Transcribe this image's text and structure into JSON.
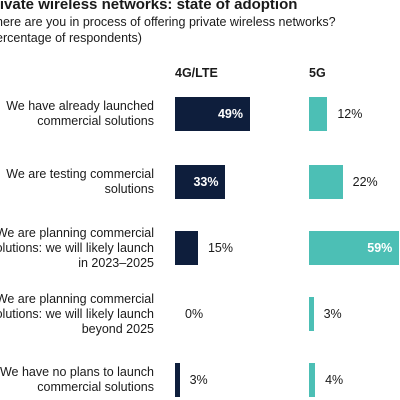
{
  "title": "rivate wireless networks: state of adoption",
  "subtitle_line1": "here are you in process of offering private wireless networks?",
  "subtitle_line2": "ercentage of respondents)",
  "chart_data": {
    "type": "bar",
    "orientation": "horizontal",
    "title": "rivate wireless networks: state of adoption",
    "series": [
      {
        "name": "4G/LTE",
        "values": [
          49,
          33,
          15,
          0,
          3
        ],
        "color": "#0e1e3c"
      },
      {
        "name": "5G",
        "values": [
          12,
          22,
          59,
          3,
          4
        ],
        "color": "#4cbfb5"
      }
    ],
    "categories": [
      [
        "We have already launched",
        "commercial solutions"
      ],
      [
        "We are testing commercial",
        "solutions"
      ],
      [
        "We are planning commercial",
        "olutions: we will likely launch",
        "in 2023–2025"
      ],
      [
        "We are planning commercial",
        "olutions: we will likely launch",
        "beyond 2025"
      ],
      [
        "We have no plans to launch",
        "commercial solutions"
      ]
    ],
    "value_labels": [
      [
        "49%",
        "33%",
        "15%",
        "0%",
        "3%"
      ],
      [
        "12%",
        "22%",
        "59%",
        "3%",
        "4%"
      ]
    ],
    "value_max": 60,
    "grid": false,
    "legend": "column-headers-top"
  }
}
